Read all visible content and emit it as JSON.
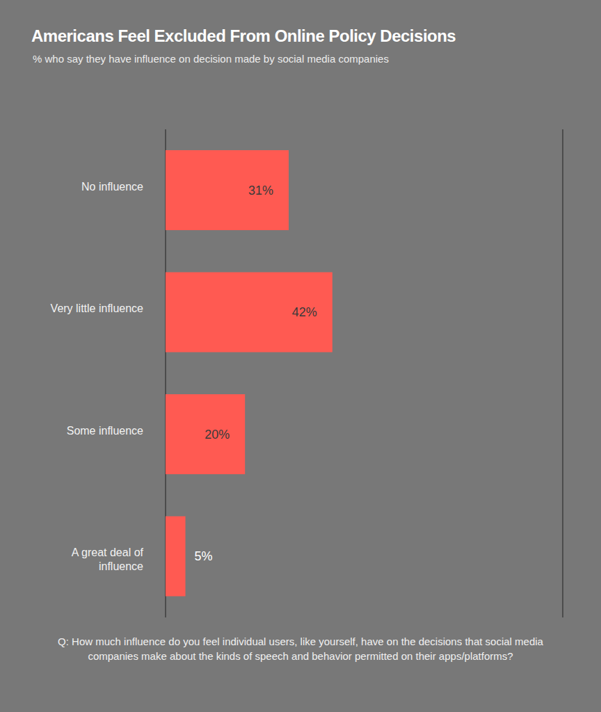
{
  "chart_data": {
    "type": "bar",
    "orientation": "horizontal",
    "title": "Americans Feel Excluded From Online Policy Decisions",
    "subtitle": "% who say they have influence on decision made by social media companies",
    "categories": [
      "No influence",
      "Very little influence",
      "Some influence",
      "A great deal of influence"
    ],
    "values": [
      31,
      42,
      20,
      5
    ],
    "value_labels": [
      "31%",
      "42%",
      "20%",
      "5%"
    ],
    "data_labels": true,
    "color": "#ff5a52",
    "xlim": [
      0,
      100
    ],
    "xticks": [
      0,
      25,
      50,
      75,
      100
    ],
    "grid": true,
    "tick_labels": "y",
    "annotations": [
      "Q: How much influence do you feel individual users, like yourself, have on the decisions that social media companies make about the kinds of speech and behavior permitted on their apps/platforms?"
    ]
  }
}
